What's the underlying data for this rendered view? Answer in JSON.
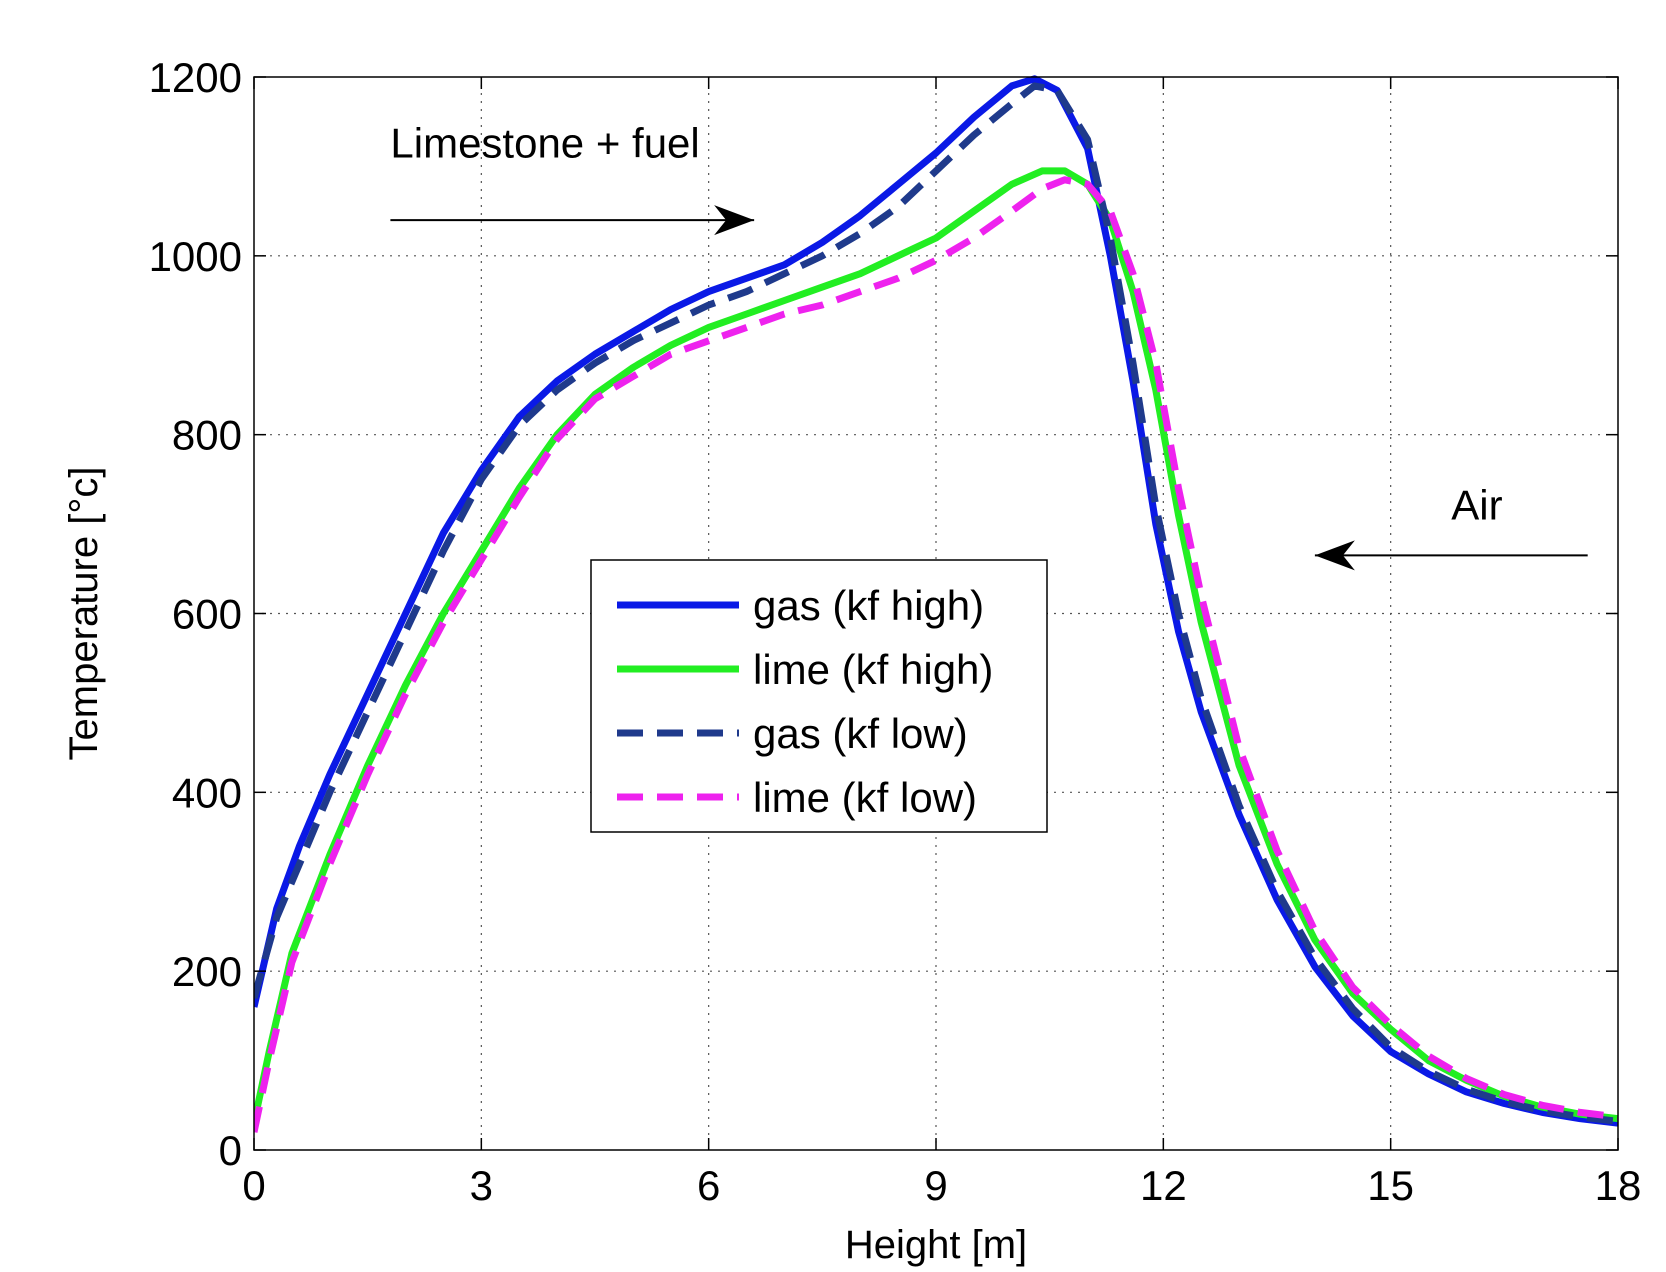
{
  "chart_data": {
    "type": "line",
    "title": "",
    "xlabel": "Height [m]",
    "ylabel": "Temperature [°c]",
    "xlim": [
      0,
      18
    ],
    "ylim": [
      0,
      1200
    ],
    "xticks": [
      0,
      3,
      6,
      9,
      12,
      15,
      18
    ],
    "yticks": [
      0,
      200,
      400,
      600,
      800,
      1000,
      1200
    ],
    "grid": true,
    "legend_position": "center",
    "annotations": [
      {
        "text": "Limestone + fuel",
        "arrow": "right",
        "x": 1.8,
        "y": 1110,
        "arrow_from": [
          1.8,
          1040
        ],
        "arrow_to": [
          6.6,
          1040
        ]
      },
      {
        "text": "Air",
        "arrow": "left",
        "x": 15.8,
        "y": 705,
        "arrow_from": [
          17.6,
          665
        ],
        "arrow_to": [
          14.0,
          665
        ]
      }
    ],
    "series": [
      {
        "name": "gas (kf high)",
        "color": "#0a19e6",
        "dash": "solid",
        "x": [
          0,
          0.3,
          0.6,
          1,
          1.5,
          2,
          2.5,
          3,
          3.5,
          4,
          4.5,
          5,
          5.5,
          6,
          6.5,
          7,
          7.5,
          8,
          8.5,
          9,
          9.5,
          10,
          10.3,
          10.6,
          11,
          11.3,
          11.6,
          11.9,
          12.2,
          12.5,
          13,
          13.5,
          14,
          14.5,
          15,
          15.5,
          16,
          16.5,
          17,
          17.5,
          18
        ],
        "y": [
          160,
          270,
          340,
          420,
          510,
          600,
          690,
          760,
          820,
          860,
          890,
          915,
          940,
          960,
          975,
          990,
          1015,
          1045,
          1080,
          1115,
          1155,
          1190,
          1198,
          1185,
          1120,
          1000,
          860,
          700,
          580,
          490,
          375,
          280,
          205,
          150,
          110,
          85,
          65,
          52,
          42,
          35,
          30
        ]
      },
      {
        "name": "lime (kf high)",
        "color": "#22ee22",
        "dash": "solid",
        "x": [
          0,
          0.2,
          0.5,
          1,
          1.5,
          2,
          2.5,
          3,
          3.5,
          4,
          4.5,
          5,
          5.5,
          6,
          6.5,
          7,
          7.5,
          8,
          8.5,
          9,
          9.5,
          10,
          10.4,
          10.7,
          11,
          11.3,
          11.6,
          11.9,
          12.2,
          12.5,
          13,
          13.5,
          14,
          14.5,
          15,
          15.5,
          16,
          16.5,
          17,
          17.5,
          18
        ],
        "y": [
          30,
          110,
          220,
          330,
          430,
          520,
          600,
          670,
          740,
          800,
          845,
          875,
          900,
          920,
          935,
          950,
          965,
          980,
          1000,
          1020,
          1050,
          1080,
          1095,
          1095,
          1080,
          1040,
          960,
          850,
          710,
          590,
          430,
          320,
          235,
          175,
          135,
          100,
          78,
          60,
          48,
          40,
          35
        ]
      },
      {
        "name": "gas (kf low)",
        "color": "#1f3a8c",
        "dash": "dashed",
        "x": [
          0,
          0.3,
          0.6,
          1,
          1.5,
          2,
          2.5,
          3,
          3.5,
          4,
          4.5,
          5,
          5.5,
          6,
          6.5,
          7,
          7.5,
          8,
          8.5,
          9,
          9.5,
          10,
          10.3,
          10.6,
          11,
          11.3,
          11.6,
          11.9,
          12.2,
          12.5,
          13,
          13.5,
          14,
          14.5,
          15,
          15.5,
          16,
          16.5,
          17,
          17.5,
          18
        ],
        "y": [
          170,
          260,
          320,
          400,
          490,
          580,
          670,
          750,
          810,
          850,
          880,
          905,
          925,
          945,
          960,
          980,
          1000,
          1025,
          1055,
          1095,
          1135,
          1170,
          1190,
          1185,
          1130,
          1020,
          880,
          720,
          600,
          505,
          385,
          290,
          215,
          158,
          115,
          88,
          68,
          54,
          44,
          37,
          32
        ]
      },
      {
        "name": "lime (kf low)",
        "color": "#ee22ee",
        "dash": "dashed",
        "x": [
          0,
          0.2,
          0.5,
          1,
          1.5,
          2,
          2.5,
          3,
          3.5,
          4,
          4.5,
          5,
          5.5,
          6,
          6.5,
          7,
          7.5,
          8,
          8.5,
          9,
          9.5,
          10,
          10.4,
          10.7,
          11,
          11.3,
          11.6,
          11.9,
          12.2,
          12.5,
          13,
          13.5,
          14,
          14.5,
          15,
          15.5,
          16,
          16.5,
          17,
          17.5,
          18
        ],
        "y": [
          20,
          100,
          210,
          320,
          420,
          510,
          590,
          660,
          730,
          795,
          840,
          865,
          890,
          905,
          920,
          935,
          945,
          960,
          975,
          995,
          1020,
          1050,
          1075,
          1085,
          1080,
          1050,
          980,
          880,
          740,
          620,
          450,
          335,
          245,
          182,
          140,
          105,
          80,
          62,
          50,
          42,
          37
        ]
      }
    ]
  }
}
